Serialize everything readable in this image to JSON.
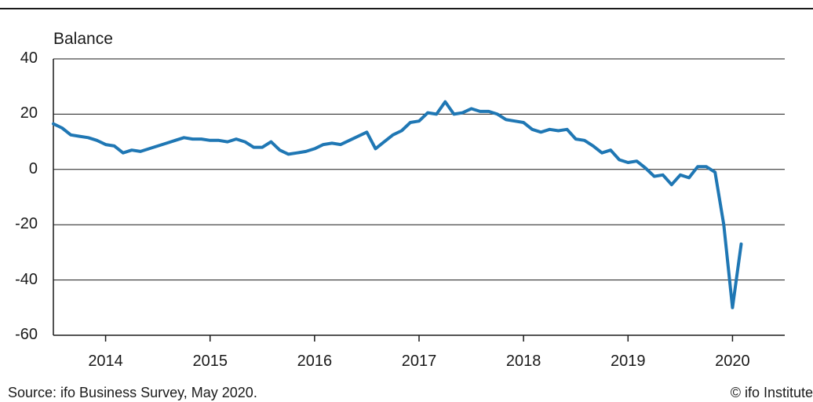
{
  "chart_data": {
    "type": "line",
    "ylabel": "Balance",
    "ylim": [
      -60,
      40
    ],
    "yticks": [
      40,
      20,
      0,
      -20,
      -40,
      -60
    ],
    "ytick_labels": [
      "40",
      "20",
      "0",
      "-20",
      "-40",
      "-60"
    ],
    "xlim": [
      2013.5,
      2020.5
    ],
    "xtick_labels": [
      "2014",
      "2015",
      "2016",
      "2017",
      "2018",
      "2019",
      "2020"
    ],
    "grid": true,
    "line_color": "#1f77b4",
    "series": [
      {
        "values": [
          {
            "x": "2013-07",
            "y": 16.5
          },
          {
            "x": "2013-08",
            "y": 15.0
          },
          {
            "x": "2013-09",
            "y": 12.5
          },
          {
            "x": "2013-10",
            "y": 12.0
          },
          {
            "x": "2013-11",
            "y": 11.5
          },
          {
            "x": "2013-12",
            "y": 10.5
          },
          {
            "x": "2014-01",
            "y": 9.0
          },
          {
            "x": "2014-02",
            "y": 8.5
          },
          {
            "x": "2014-03",
            "y": 6.0
          },
          {
            "x": "2014-04",
            "y": 7.0
          },
          {
            "x": "2014-05",
            "y": 6.5
          },
          {
            "x": "2014-06",
            "y": 7.5
          },
          {
            "x": "2014-07",
            "y": 8.5
          },
          {
            "x": "2014-08",
            "y": 9.5
          },
          {
            "x": "2014-09",
            "y": 10.5
          },
          {
            "x": "2014-10",
            "y": 11.5
          },
          {
            "x": "2014-11",
            "y": 11.0
          },
          {
            "x": "2014-12",
            "y": 11.0
          },
          {
            "x": "2015-01",
            "y": 10.5
          },
          {
            "x": "2015-02",
            "y": 10.5
          },
          {
            "x": "2015-03",
            "y": 10.0
          },
          {
            "x": "2015-04",
            "y": 11.0
          },
          {
            "x": "2015-05",
            "y": 10.0
          },
          {
            "x": "2015-06",
            "y": 8.0
          },
          {
            "x": "2015-07",
            "y": 8.0
          },
          {
            "x": "2015-08",
            "y": 10.0
          },
          {
            "x": "2015-09",
            "y": 7.0
          },
          {
            "x": "2015-10",
            "y": 5.5
          },
          {
            "x": "2015-11",
            "y": 6.0
          },
          {
            "x": "2015-12",
            "y": 6.5
          },
          {
            "x": "2016-01",
            "y": 7.5
          },
          {
            "x": "2016-02",
            "y": 9.0
          },
          {
            "x": "2016-03",
            "y": 9.5
          },
          {
            "x": "2016-04",
            "y": 9.0
          },
          {
            "x": "2016-05",
            "y": 10.5
          },
          {
            "x": "2016-06",
            "y": 12.0
          },
          {
            "x": "2016-07",
            "y": 13.5
          },
          {
            "x": "2016-08",
            "y": 7.5
          },
          {
            "x": "2016-09",
            "y": 10.0
          },
          {
            "x": "2016-10",
            "y": 12.5
          },
          {
            "x": "2016-11",
            "y": 14.0
          },
          {
            "x": "2016-12",
            "y": 17.0
          },
          {
            "x": "2017-01",
            "y": 17.5
          },
          {
            "x": "2017-02",
            "y": 20.5
          },
          {
            "x": "2017-03",
            "y": 20.0
          },
          {
            "x": "2017-04",
            "y": 24.5
          },
          {
            "x": "2017-05",
            "y": 20.0
          },
          {
            "x": "2017-06",
            "y": 20.5
          },
          {
            "x": "2017-07",
            "y": 22.0
          },
          {
            "x": "2017-08",
            "y": 21.0
          },
          {
            "x": "2017-09",
            "y": 21.0
          },
          {
            "x": "2017-10",
            "y": 20.0
          },
          {
            "x": "2017-11",
            "y": 18.0
          },
          {
            "x": "2017-12",
            "y": 17.5
          },
          {
            "x": "2018-01",
            "y": 17.0
          },
          {
            "x": "2018-02",
            "y": 14.5
          },
          {
            "x": "2018-03",
            "y": 13.5
          },
          {
            "x": "2018-04",
            "y": 14.5
          },
          {
            "x": "2018-05",
            "y": 14.0
          },
          {
            "x": "2018-06",
            "y": 14.5
          },
          {
            "x": "2018-07",
            "y": 11.0
          },
          {
            "x": "2018-08",
            "y": 10.5
          },
          {
            "x": "2018-09",
            "y": 8.5
          },
          {
            "x": "2018-10",
            "y": 6.0
          },
          {
            "x": "2018-11",
            "y": 7.0
          },
          {
            "x": "2018-12",
            "y": 3.5
          },
          {
            "x": "2019-01",
            "y": 2.5
          },
          {
            "x": "2019-02",
            "y": 3.0
          },
          {
            "x": "2019-03",
            "y": 0.5
          },
          {
            "x": "2019-04",
            "y": -2.5
          },
          {
            "x": "2019-05",
            "y": -2.0
          },
          {
            "x": "2019-06",
            "y": -5.5
          },
          {
            "x": "2019-07",
            "y": -2.0
          },
          {
            "x": "2019-08",
            "y": -3.0
          },
          {
            "x": "2019-09",
            "y": 1.0
          },
          {
            "x": "2019-10",
            "y": 1.0
          },
          {
            "x": "2019-11",
            "y": -1.0
          },
          {
            "x": "2019-12",
            "y": -20.0
          },
          {
            "x": "2020-01",
            "y": -50.0
          },
          {
            "x": "2020-02",
            "y": -27.0
          }
        ]
      }
    ]
  },
  "footer": {
    "source": "Source: ifo Business Survey, May 2020.",
    "copyright": "© ifo Institute"
  }
}
